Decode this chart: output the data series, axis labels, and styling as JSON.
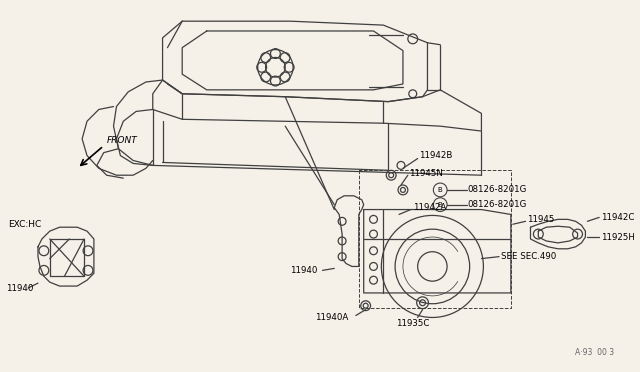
{
  "bg_color": "#f5f0e8",
  "line_color": "#404040",
  "text_color": "#000000",
  "fig_width": 6.4,
  "fig_height": 3.72,
  "dpi": 100,
  "watermark": "A·93  00 3",
  "front_label": "FRONT",
  "exc_hc_label": "EXC:HC"
}
